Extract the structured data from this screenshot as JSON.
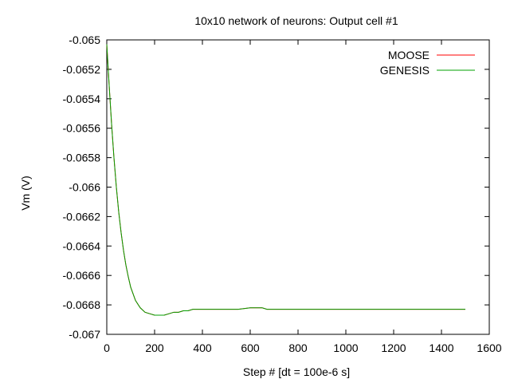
{
  "chart_data": {
    "type": "line",
    "title": "10x10 network of neurons: Output cell #1",
    "xlabel": "Step # [dt = 100e-6 s]",
    "ylabel": "Vm (V)",
    "xlim": [
      0,
      1600
    ],
    "ylim": [
      -0.067,
      -0.065
    ],
    "x_ticks": [
      0,
      200,
      400,
      600,
      800,
      1000,
      1200,
      1400,
      1600
    ],
    "x_tick_labels": [
      "0",
      "200",
      "400",
      "600",
      "800",
      "1000",
      "1200",
      "1400",
      "1600"
    ],
    "y_ticks": [
      -0.065,
      -0.0652,
      -0.0654,
      -0.0656,
      -0.0658,
      -0.066,
      -0.0662,
      -0.0664,
      -0.0666,
      -0.0668,
      -0.067
    ],
    "y_tick_labels": [
      "-0.065",
      "-0.0652",
      "-0.0654",
      "-0.0656",
      "-0.0658",
      "-0.066",
      "-0.0662",
      "-0.0664",
      "-0.0666",
      "-0.0668",
      "-0.067"
    ],
    "grid": false,
    "legend_position": "top-right",
    "series": [
      {
        "name": "MOOSE",
        "color": "#ff0000",
        "x": [
          0,
          10,
          20,
          30,
          40,
          50,
          60,
          70,
          80,
          90,
          100,
          120,
          140,
          160,
          180,
          200,
          220,
          240,
          260,
          280,
          300,
          320,
          340,
          360,
          380,
          400,
          450,
          500,
          550,
          600,
          650,
          670,
          700,
          800,
          900,
          1000,
          1100,
          1200,
          1300,
          1400,
          1500
        ],
        "y": [
          -0.06503,
          -0.06531,
          -0.06557,
          -0.0658,
          -0.066,
          -0.06617,
          -0.06631,
          -0.06643,
          -0.06653,
          -0.06661,
          -0.06668,
          -0.06677,
          -0.06682,
          -0.06685,
          -0.06686,
          -0.06687,
          -0.06687,
          -0.06687,
          -0.06686,
          -0.06685,
          -0.06685,
          -0.06684,
          -0.06684,
          -0.06683,
          -0.06683,
          -0.06683,
          -0.06683,
          -0.06683,
          -0.06683,
          -0.06682,
          -0.06682,
          -0.06683,
          -0.06683,
          -0.06683,
          -0.06683,
          -0.06683,
          -0.06683,
          -0.06683,
          -0.06683,
          -0.06683,
          -0.06683
        ]
      },
      {
        "name": "GENESIS",
        "color": "#00a000",
        "x": [
          0,
          10,
          20,
          30,
          40,
          50,
          60,
          70,
          80,
          90,
          100,
          120,
          140,
          160,
          180,
          200,
          220,
          240,
          260,
          280,
          300,
          320,
          340,
          360,
          380,
          400,
          450,
          500,
          550,
          600,
          650,
          670,
          700,
          800,
          900,
          1000,
          1100,
          1200,
          1300,
          1400,
          1500
        ],
        "y": [
          -0.06503,
          -0.06531,
          -0.06557,
          -0.0658,
          -0.066,
          -0.06617,
          -0.06631,
          -0.06643,
          -0.06653,
          -0.06661,
          -0.06668,
          -0.06677,
          -0.06682,
          -0.06685,
          -0.06686,
          -0.06687,
          -0.06687,
          -0.06687,
          -0.06686,
          -0.06685,
          -0.06685,
          -0.06684,
          -0.06684,
          -0.06683,
          -0.06683,
          -0.06683,
          -0.06683,
          -0.06683,
          -0.06683,
          -0.06682,
          -0.06682,
          -0.06683,
          -0.06683,
          -0.06683,
          -0.06683,
          -0.06683,
          -0.06683,
          -0.06683,
          -0.06683,
          -0.06683,
          -0.06683
        ]
      }
    ]
  }
}
